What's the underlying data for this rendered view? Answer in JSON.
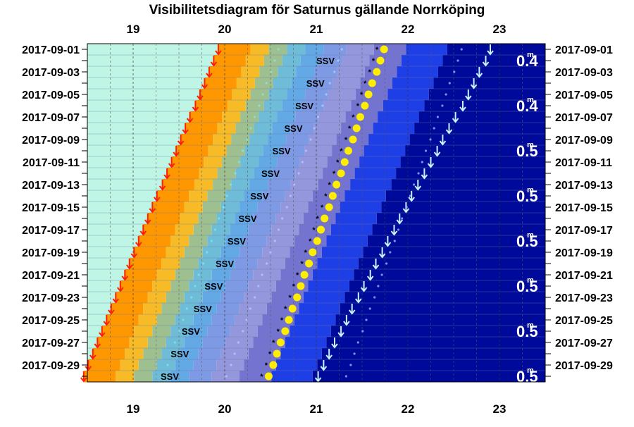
{
  "chart_data": {
    "type": "heatmap",
    "title": "Visibilitetsdiagram för Saturnus gällande Norrköping",
    "xlabel": "",
    "ylabel": "",
    "x_unit": "hour",
    "xlim": [
      18.5,
      23.5
    ],
    "x_ticks": [
      "19",
      "20",
      "21",
      "22",
      "23"
    ],
    "x_tick_values": [
      19,
      20,
      21,
      22,
      23
    ],
    "dates": [
      "2017-09-01",
      "2017-09-02",
      "2017-09-03",
      "2017-09-04",
      "2017-09-05",
      "2017-09-06",
      "2017-09-07",
      "2017-09-08",
      "2017-09-09",
      "2017-09-10",
      "2017-09-11",
      "2017-09-12",
      "2017-09-13",
      "2017-09-14",
      "2017-09-15",
      "2017-09-16",
      "2017-09-17",
      "2017-09-18",
      "2017-09-19",
      "2017-09-20",
      "2017-09-21",
      "2017-09-22",
      "2017-09-23",
      "2017-09-24",
      "2017-09-25",
      "2017-09-26",
      "2017-09-27",
      "2017-09-28",
      "2017-09-29",
      "2017-09-30"
    ],
    "date_labels": [
      "2017-09-01",
      "2017-09-03",
      "2017-09-05",
      "2017-09-07",
      "2017-09-09",
      "2017-09-11",
      "2017-09-13",
      "2017-09-15",
      "2017-09-17",
      "2017-09-19",
      "2017-09-21",
      "2017-09-23",
      "2017-09-25",
      "2017-09-27",
      "2017-09-29"
    ],
    "sunset": [
      19.93,
      19.88,
      19.83,
      19.78,
      19.73,
      19.68,
      19.62,
      19.57,
      19.52,
      19.47,
      19.42,
      19.37,
      19.32,
      19.26,
      19.21,
      19.16,
      19.11,
      19.06,
      19.01,
      18.96,
      18.91,
      18.86,
      18.81,
      18.76,
      18.71,
      18.66,
      18.61,
      18.56,
      18.51,
      18.46
    ],
    "saturn_set": [
      22.9,
      22.85,
      22.78,
      22.72,
      22.66,
      22.6,
      22.52,
      22.45,
      22.38,
      22.32,
      22.25,
      22.18,
      22.11,
      22.04,
      21.98,
      21.91,
      21.85,
      21.78,
      21.72,
      21.65,
      21.59,
      21.52,
      21.46,
      21.39,
      21.33,
      21.27,
      21.2,
      21.14,
      21.08,
      21.02
    ],
    "saturn_mark": [
      21.74,
      21.7,
      21.66,
      21.61,
      21.57,
      21.53,
      21.48,
      21.44,
      21.4,
      21.35,
      21.31,
      21.27,
      21.22,
      21.18,
      21.14,
      21.09,
      21.05,
      21.01,
      20.96,
      20.92,
      20.87,
      20.83,
      20.79,
      20.74,
      20.7,
      20.66,
      20.61,
      20.57,
      20.53,
      20.48
    ],
    "direction_label": "SSV",
    "direction_rows": [
      1,
      3,
      5,
      7,
      9,
      11,
      13,
      15,
      17,
      19,
      21,
      23,
      25,
      27,
      29
    ],
    "direction_x": [
      21.1,
      20.99,
      20.87,
      20.75,
      20.62,
      20.5,
      20.38,
      20.25,
      20.13,
      20.0,
      19.88,
      19.76,
      19.63,
      19.51,
      19.4
    ],
    "magnitudes": [
      {
        "row": 1,
        "value": "0.4",
        "sup": "m"
      },
      {
        "row": 5,
        "value": "0.4",
        "sup": "m"
      },
      {
        "row": 9,
        "value": "0.5",
        "sup": "m"
      },
      {
        "row": 13,
        "value": "0.5",
        "sup": "m"
      },
      {
        "row": 17,
        "value": "0.5",
        "sup": "m"
      },
      {
        "row": 21,
        "value": "0.5",
        "sup": "m"
      },
      {
        "row": 25,
        "value": "0.5",
        "sup": "m"
      },
      {
        "row": 29,
        "value": "0.5",
        "sup": "m"
      }
    ],
    "band_offsets_hours": [
      0,
      0.35,
      0.55,
      0.75,
      0.95,
      1.15,
      1.4,
      1.7,
      2.05,
      2.5
    ],
    "colors": {
      "day": "#bef5e4",
      "sunset_arrow": "#ff1f00",
      "saturn_set_arrow": "#c8f2ff",
      "saturn_dot": "#ffee00",
      "bands": [
        "#ff9800",
        "#f7bb28",
        "#9ec090",
        "#6fbcd8",
        "#62a9e6",
        "#7f9ae4",
        "#9497dc",
        "#7474d0",
        "#1f3fe6",
        "#000a9a"
      ]
    },
    "grid": true
  }
}
